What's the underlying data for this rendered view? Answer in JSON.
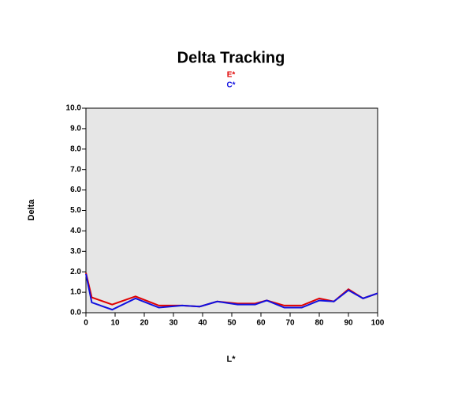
{
  "chart_data": {
    "type": "line",
    "title": "Delta Tracking",
    "x_label": "L*",
    "y_label": "Delta",
    "x": [
      0,
      2,
      9,
      17,
      25,
      33,
      39,
      45,
      52,
      58,
      62,
      68,
      74,
      80,
      85,
      90,
      95,
      100
    ],
    "series": [
      {
        "name": "E*",
        "color": "#e00000",
        "values": [
          1.95,
          0.75,
          0.4,
          0.8,
          0.35,
          0.35,
          0.3,
          0.55,
          0.45,
          0.45,
          0.6,
          0.35,
          0.35,
          0.7,
          0.55,
          1.15,
          0.7,
          0.95
        ]
      },
      {
        "name": "C*",
        "color": "#1010e0",
        "values": [
          1.9,
          0.5,
          0.15,
          0.7,
          0.25,
          0.35,
          0.3,
          0.55,
          0.4,
          0.4,
          0.6,
          0.25,
          0.25,
          0.6,
          0.55,
          1.1,
          0.7,
          0.95
        ]
      }
    ],
    "xlim": [
      0,
      100
    ],
    "xticks": [
      0,
      10,
      20,
      30,
      40,
      50,
      60,
      70,
      80,
      90,
      100
    ],
    "ylim": [
      0,
      10
    ],
    "yticks": [
      {
        "value": 0,
        "label": "0.0"
      },
      {
        "value": 1,
        "label": "1.0"
      },
      {
        "value": 2,
        "label": "2.0"
      },
      {
        "value": 3,
        "label": "3.0"
      },
      {
        "value": 4,
        "label": "4.0"
      },
      {
        "value": 5,
        "label": "5.0"
      },
      {
        "value": 6,
        "label": "6.0"
      },
      {
        "value": 7,
        "label": "7.0"
      },
      {
        "value": 8,
        "label": "8.0"
      },
      {
        "value": 9,
        "label": "9.0"
      },
      {
        "value": 10,
        "label": "10.0"
      }
    ]
  }
}
